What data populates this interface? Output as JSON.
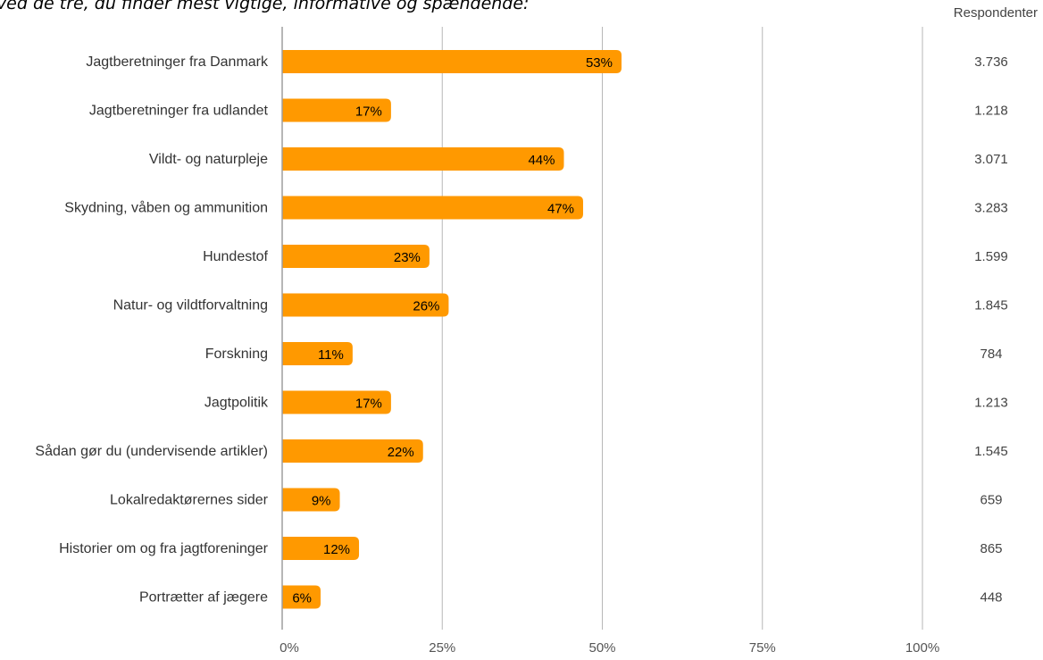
{
  "chart_data": {
    "type": "bar",
    "orientation": "horizontal",
    "title": "s ved de tre, du finder mest vigtige, informative og spændende:",
    "categories": [
      "Jagtberetninger fra Danmark",
      "Jagtberetninger fra udlandet",
      "Vildt- og naturpleje",
      "Skydning, våben og ammunition",
      "Hundestof",
      "Natur- og vildtforvaltning",
      "Forskning",
      "Jagtpolitik",
      "Sådan gør du (undervisende artikler)",
      "Lokalredaktørernes sider",
      "Historier om og fra jagtforeninger",
      "Portrætter af jægere"
    ],
    "values": [
      53,
      17,
      44,
      47,
      23,
      26,
      11,
      17,
      22,
      9,
      12,
      6
    ],
    "value_labels": [
      "53%",
      "17%",
      "44%",
      "47%",
      "23%",
      "26%",
      "11%",
      "17%",
      "22%",
      "9%",
      "12%",
      "6%"
    ],
    "respondents_header": "Respondenter",
    "respondents": [
      "3.736",
      "1.218",
      "3.071",
      "3.283",
      "1.599",
      "1.845",
      "784",
      "1.213",
      "1.545",
      "659",
      "865",
      "448"
    ],
    "xlim": [
      0,
      100
    ],
    "x_ticks": [
      0,
      25,
      50,
      75,
      100
    ],
    "x_tick_labels": [
      "0%",
      "25%",
      "50%",
      "75%",
      "100%"
    ],
    "grid": true,
    "bar_color": "#ff9900",
    "grid_color": "#b7b7b7"
  }
}
